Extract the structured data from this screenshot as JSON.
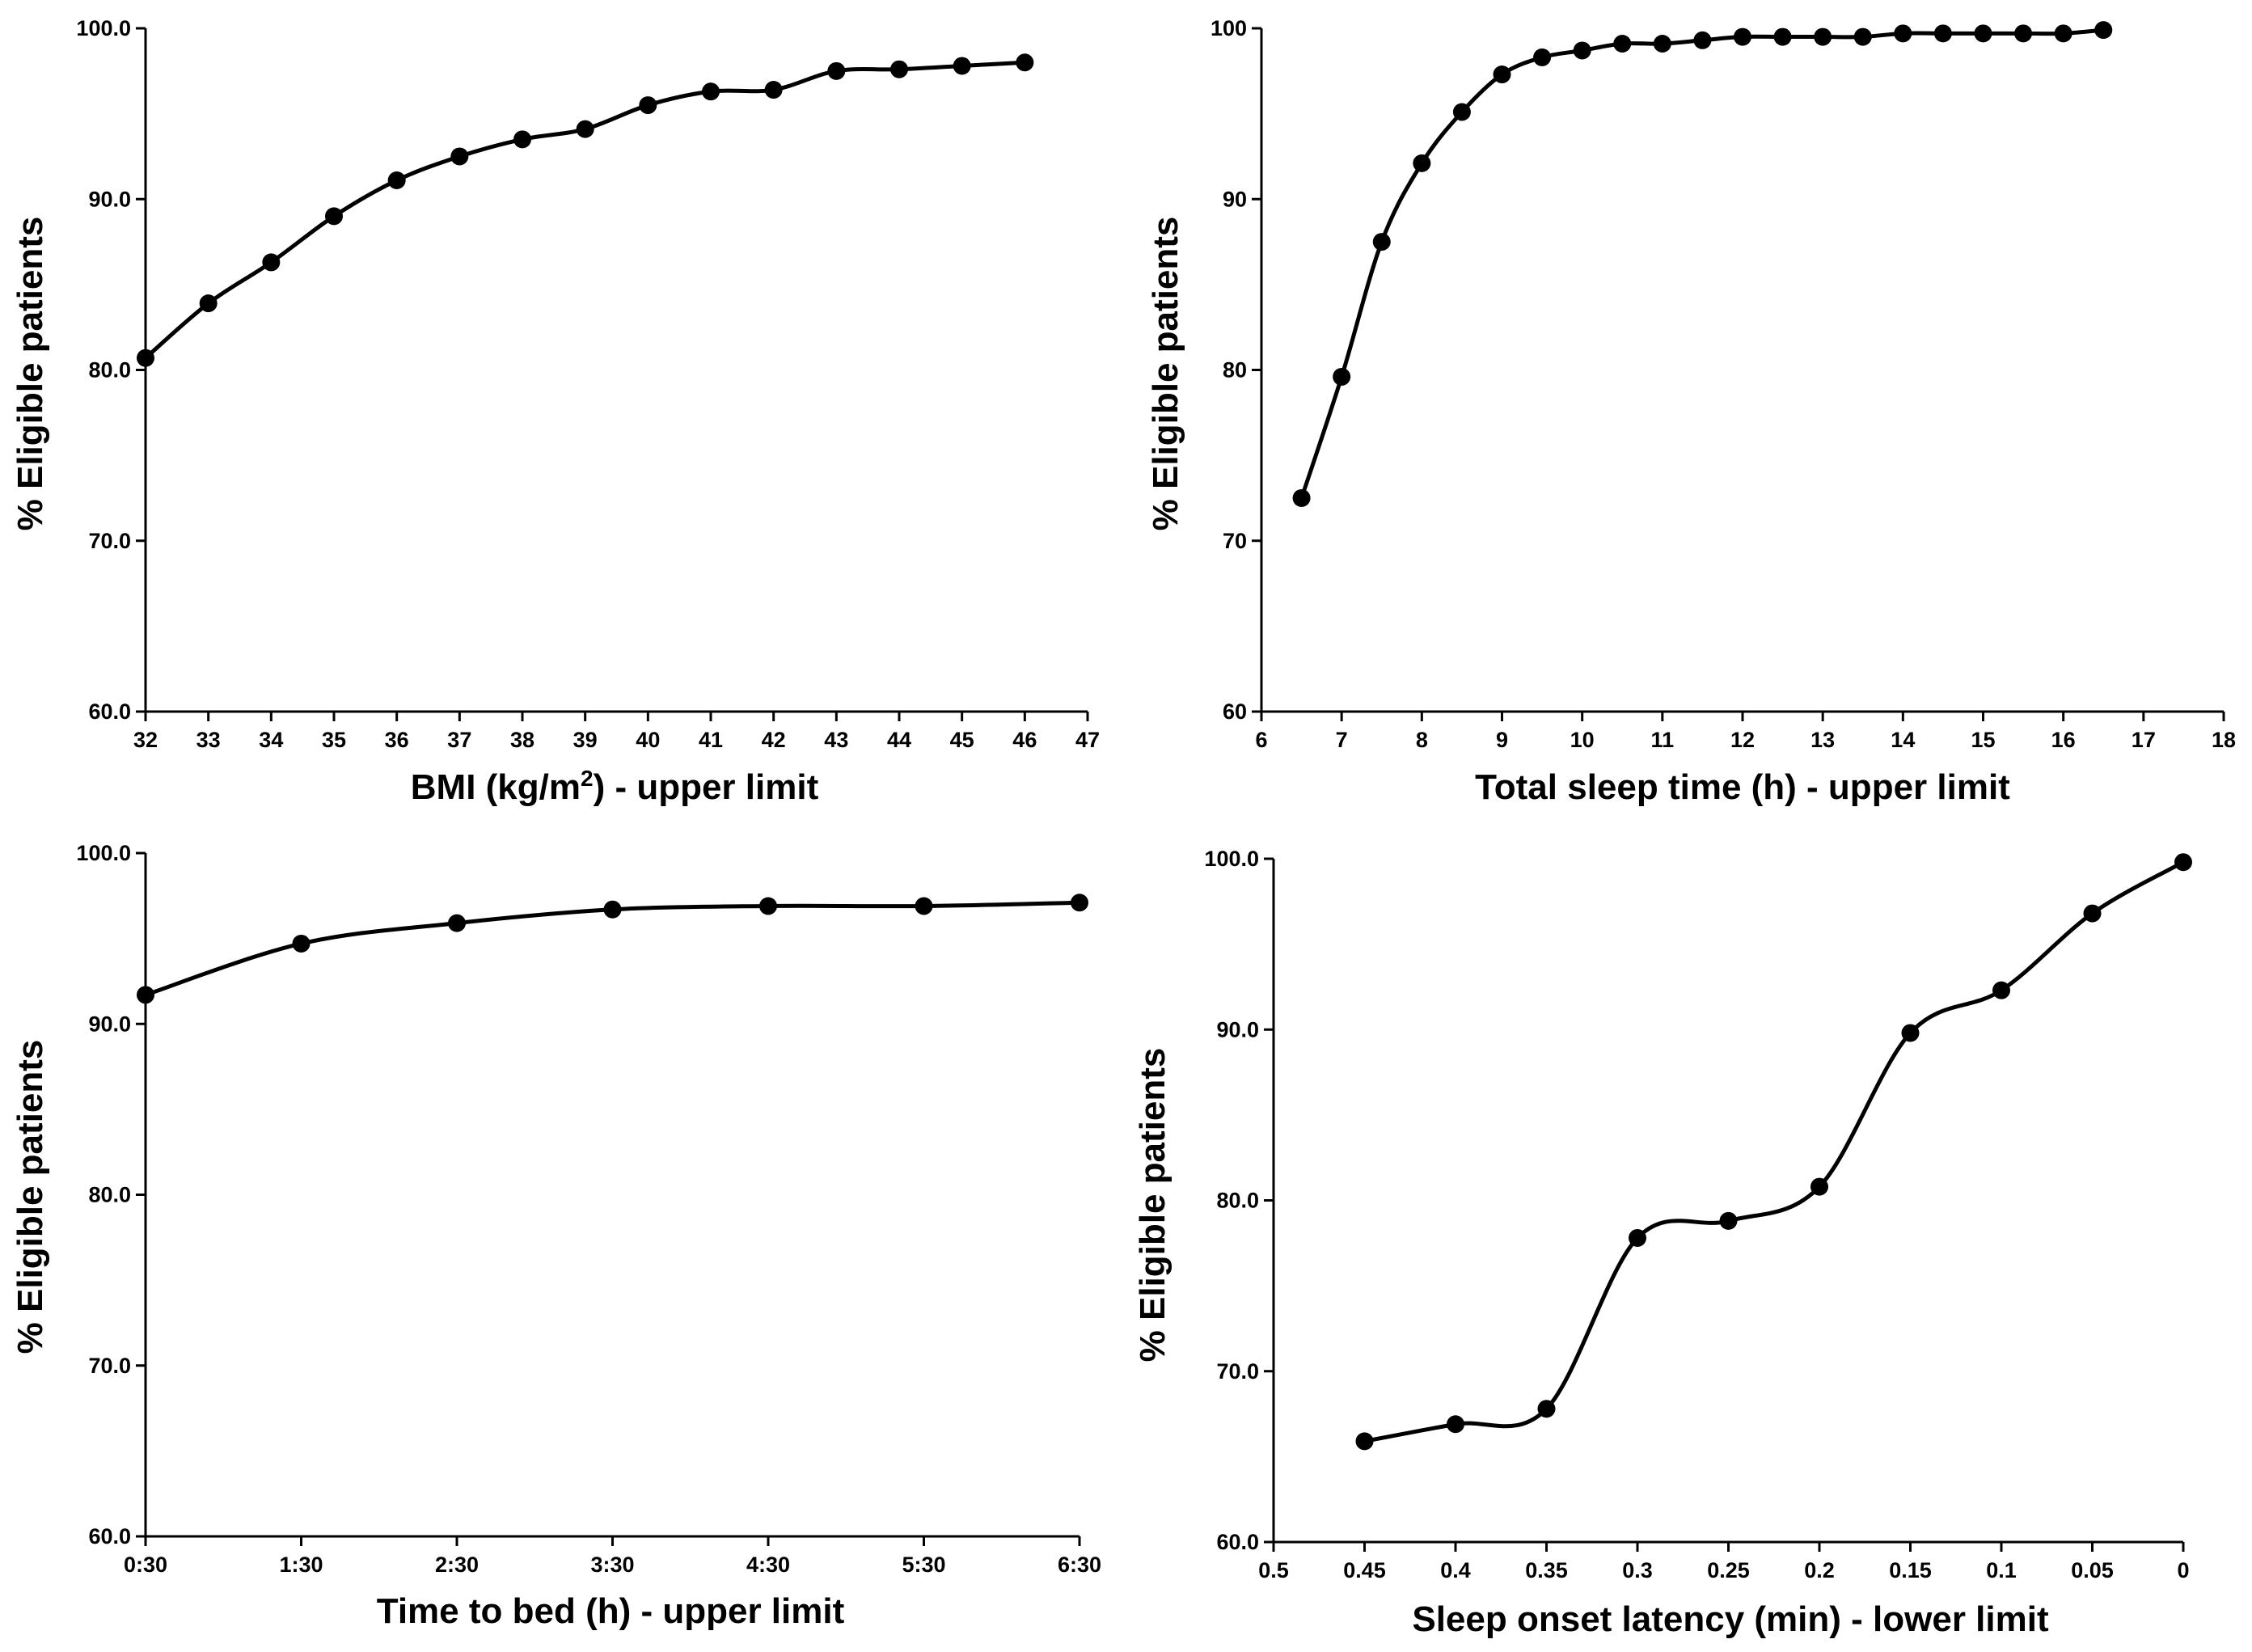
{
  "chart_data": [
    {
      "type": "line",
      "panel": "top-left",
      "title": "",
      "xlabel": "BMI (kg/m",
      "xlabel_sup": "2",
      "xlabel_suffix": ") - upper limit",
      "ylabel": "% Eligible patients",
      "xlim": [
        32,
        47
      ],
      "ylim": [
        60,
        100
      ],
      "grid": false,
      "smooth": true,
      "x_ticks": [
        32,
        33,
        34,
        35,
        36,
        37,
        38,
        39,
        40,
        41,
        42,
        43,
        44,
        45,
        46,
        47
      ],
      "x_tick_labels": [
        "32",
        "33",
        "34",
        "35",
        "36",
        "37",
        "38",
        "39",
        "40",
        "41",
        "42",
        "43",
        "44",
        "45",
        "46",
        "47"
      ],
      "y_ticks": [
        60,
        70,
        80,
        90,
        100
      ],
      "y_tick_labels": [
        "60.0",
        "70.0",
        "80.0",
        "90.0",
        "100.0"
      ],
      "series": [
        {
          "name": "BMI",
          "x": [
            32,
            33,
            34,
            35,
            36,
            37,
            38,
            39,
            40,
            41,
            42,
            43,
            44,
            45,
            46
          ],
          "values": [
            80.7,
            83.9,
            86.3,
            89.0,
            91.1,
            92.5,
            93.5,
            94.1,
            95.5,
            96.3,
            96.4,
            97.5,
            97.6,
            97.8,
            98.0
          ]
        }
      ]
    },
    {
      "type": "line",
      "panel": "top-right",
      "title": "",
      "xlabel": "Total sleep time (h) - upper limit",
      "ylabel": "% Eligible patients",
      "xlim": [
        6,
        18
      ],
      "ylim": [
        60,
        100
      ],
      "grid": false,
      "smooth": true,
      "x_ticks": [
        6,
        7,
        8,
        9,
        10,
        11,
        12,
        13,
        14,
        15,
        16,
        17,
        18
      ],
      "x_tick_labels": [
        "6",
        "7",
        "8",
        "9",
        "10",
        "11",
        "12",
        "13",
        "14",
        "15",
        "16",
        "17",
        "18"
      ],
      "y_ticks": [
        60,
        70,
        80,
        90,
        100
      ],
      "y_tick_labels": [
        "60",
        "70",
        "80",
        "90",
        "100"
      ],
      "series": [
        {
          "name": "Total sleep time",
          "x": [
            6.5,
            7,
            7.5,
            8,
            8.5,
            9,
            9.5,
            10,
            10.5,
            11,
            11.5,
            12,
            12.5,
            13,
            13.5,
            14,
            14.5,
            15,
            15.5,
            16,
            16.5
          ],
          "values": [
            72.5,
            79.6,
            87.5,
            92.1,
            95.1,
            97.3,
            98.3,
            98.7,
            99.1,
            99.1,
            99.3,
            99.5,
            99.5,
            99.5,
            99.5,
            99.7,
            99.7,
            99.7,
            99.7,
            99.7,
            99.9
          ]
        }
      ]
    },
    {
      "type": "line",
      "panel": "bottom-left",
      "title": "",
      "xlabel": "Time to bed (h) - upper limit",
      "ylabel": "% Eligible patients",
      "xlim": [
        0,
        6
      ],
      "ylim": [
        60,
        100
      ],
      "grid": false,
      "smooth": true,
      "x_ticks": [
        0,
        1,
        2,
        3,
        4,
        5,
        6
      ],
      "x_tick_labels": [
        "0:30",
        "1:30",
        "2:30",
        "3:30",
        "4:30",
        "5:30",
        "6:30"
      ],
      "y_ticks": [
        60,
        70,
        80,
        90,
        100
      ],
      "y_tick_labels": [
        "60.0",
        "70.0",
        "80.0",
        "90.0",
        "100.0"
      ],
      "series": [
        {
          "name": "Time to bed",
          "x": [
            0,
            1,
            2,
            3,
            4,
            5,
            6
          ],
          "x_labels": [
            "0:30",
            "1:30",
            "2:30",
            "3:30",
            "4:30",
            "5:30",
            "6:30"
          ],
          "values": [
            91.7,
            94.7,
            95.9,
            96.7,
            96.9,
            96.9,
            97.1
          ]
        }
      ]
    },
    {
      "type": "line",
      "panel": "bottom-right",
      "title": "",
      "xlabel": "Sleep onset latency (min) - lower limit",
      "ylabel": "% Eligible patients",
      "xlim": [
        0.5,
        0
      ],
      "x_reversed": true,
      "ylim": [
        60,
        100
      ],
      "grid": false,
      "smooth": true,
      "x_ticks": [
        0.5,
        0.45,
        0.4,
        0.35,
        0.3,
        0.25,
        0.2,
        0.15,
        0.1,
        0.05,
        0
      ],
      "x_tick_labels": [
        "0.5",
        "0.45",
        "0.4",
        "0.35",
        "0.3",
        "0.25",
        "0.2",
        "0.15",
        "0.1",
        "0.05",
        "0"
      ],
      "y_ticks": [
        60,
        70,
        80,
        90,
        100
      ],
      "y_tick_labels": [
        "60.0",
        "70.0",
        "80.0",
        "90.0",
        "100.0"
      ],
      "series": [
        {
          "name": "Sleep onset latency",
          "x": [
            0.45,
            0.4,
            0.35,
            0.3,
            0.25,
            0.2,
            0.15,
            0.1,
            0.05,
            0
          ],
          "values": [
            65.9,
            66.9,
            67.8,
            77.8,
            78.8,
            80.8,
            89.8,
            92.3,
            96.8,
            99.8
          ]
        }
      ]
    }
  ]
}
